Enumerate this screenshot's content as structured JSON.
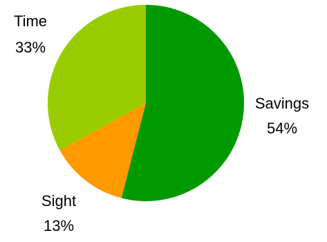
{
  "chart_data": {
    "type": "pie",
    "title": "",
    "legend": "none",
    "start_angle_deg": 0,
    "direction": "clockwise",
    "slices": [
      {
        "label": "Savings",
        "value": 54,
        "value_label": "54%",
        "color": "#009900"
      },
      {
        "label": "Sight",
        "value": 13,
        "value_label": "13%",
        "color": "#ff9900"
      },
      {
        "label": "Time",
        "value": 33,
        "value_label": "33%",
        "color": "#99cc00"
      }
    ]
  }
}
